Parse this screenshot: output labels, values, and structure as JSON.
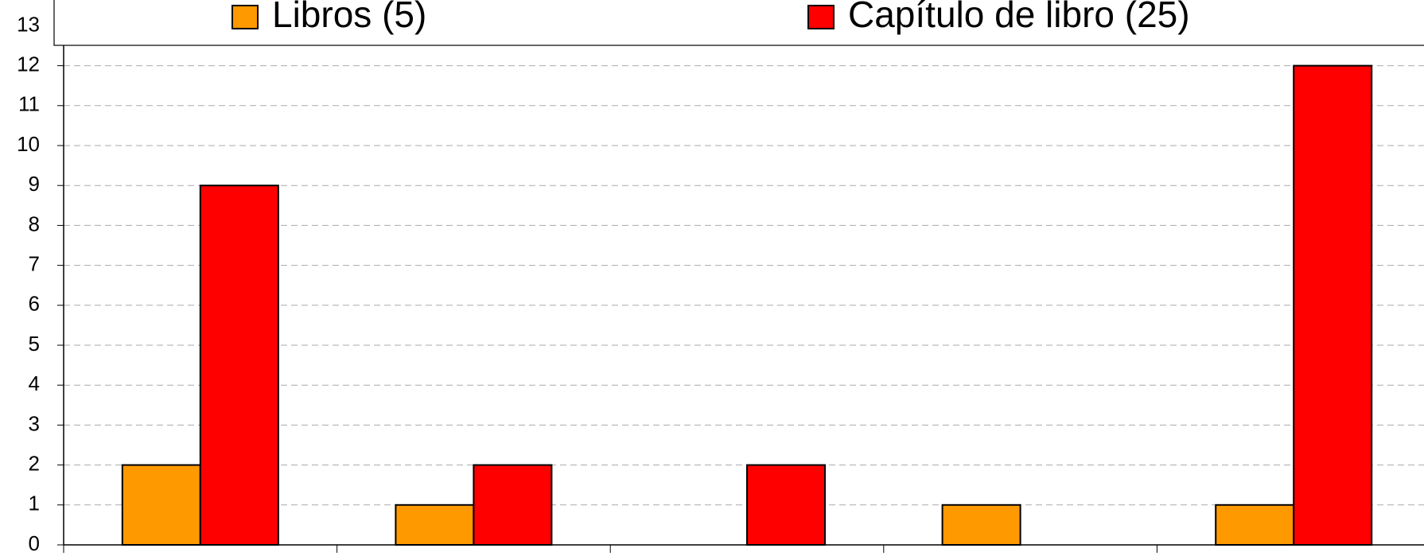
{
  "chart_data": {
    "type": "bar",
    "categories": [
      null,
      null,
      null,
      null,
      null
    ],
    "series": [
      {
        "name": "Libros (5)",
        "color": "#ff9900",
        "values": [
          2,
          1,
          0,
          1,
          1
        ]
      },
      {
        "name": "Capítulo de libro (25)",
        "color": "#ff0000",
        "values": [
          9,
          2,
          2,
          0,
          12
        ]
      }
    ],
    "ylim": [
      0,
      13
    ],
    "yticks": [
      0,
      1,
      2,
      3,
      4,
      5,
      6,
      7,
      8,
      9,
      10,
      11,
      12,
      13
    ],
    "grid": true,
    "legend": "top"
  }
}
